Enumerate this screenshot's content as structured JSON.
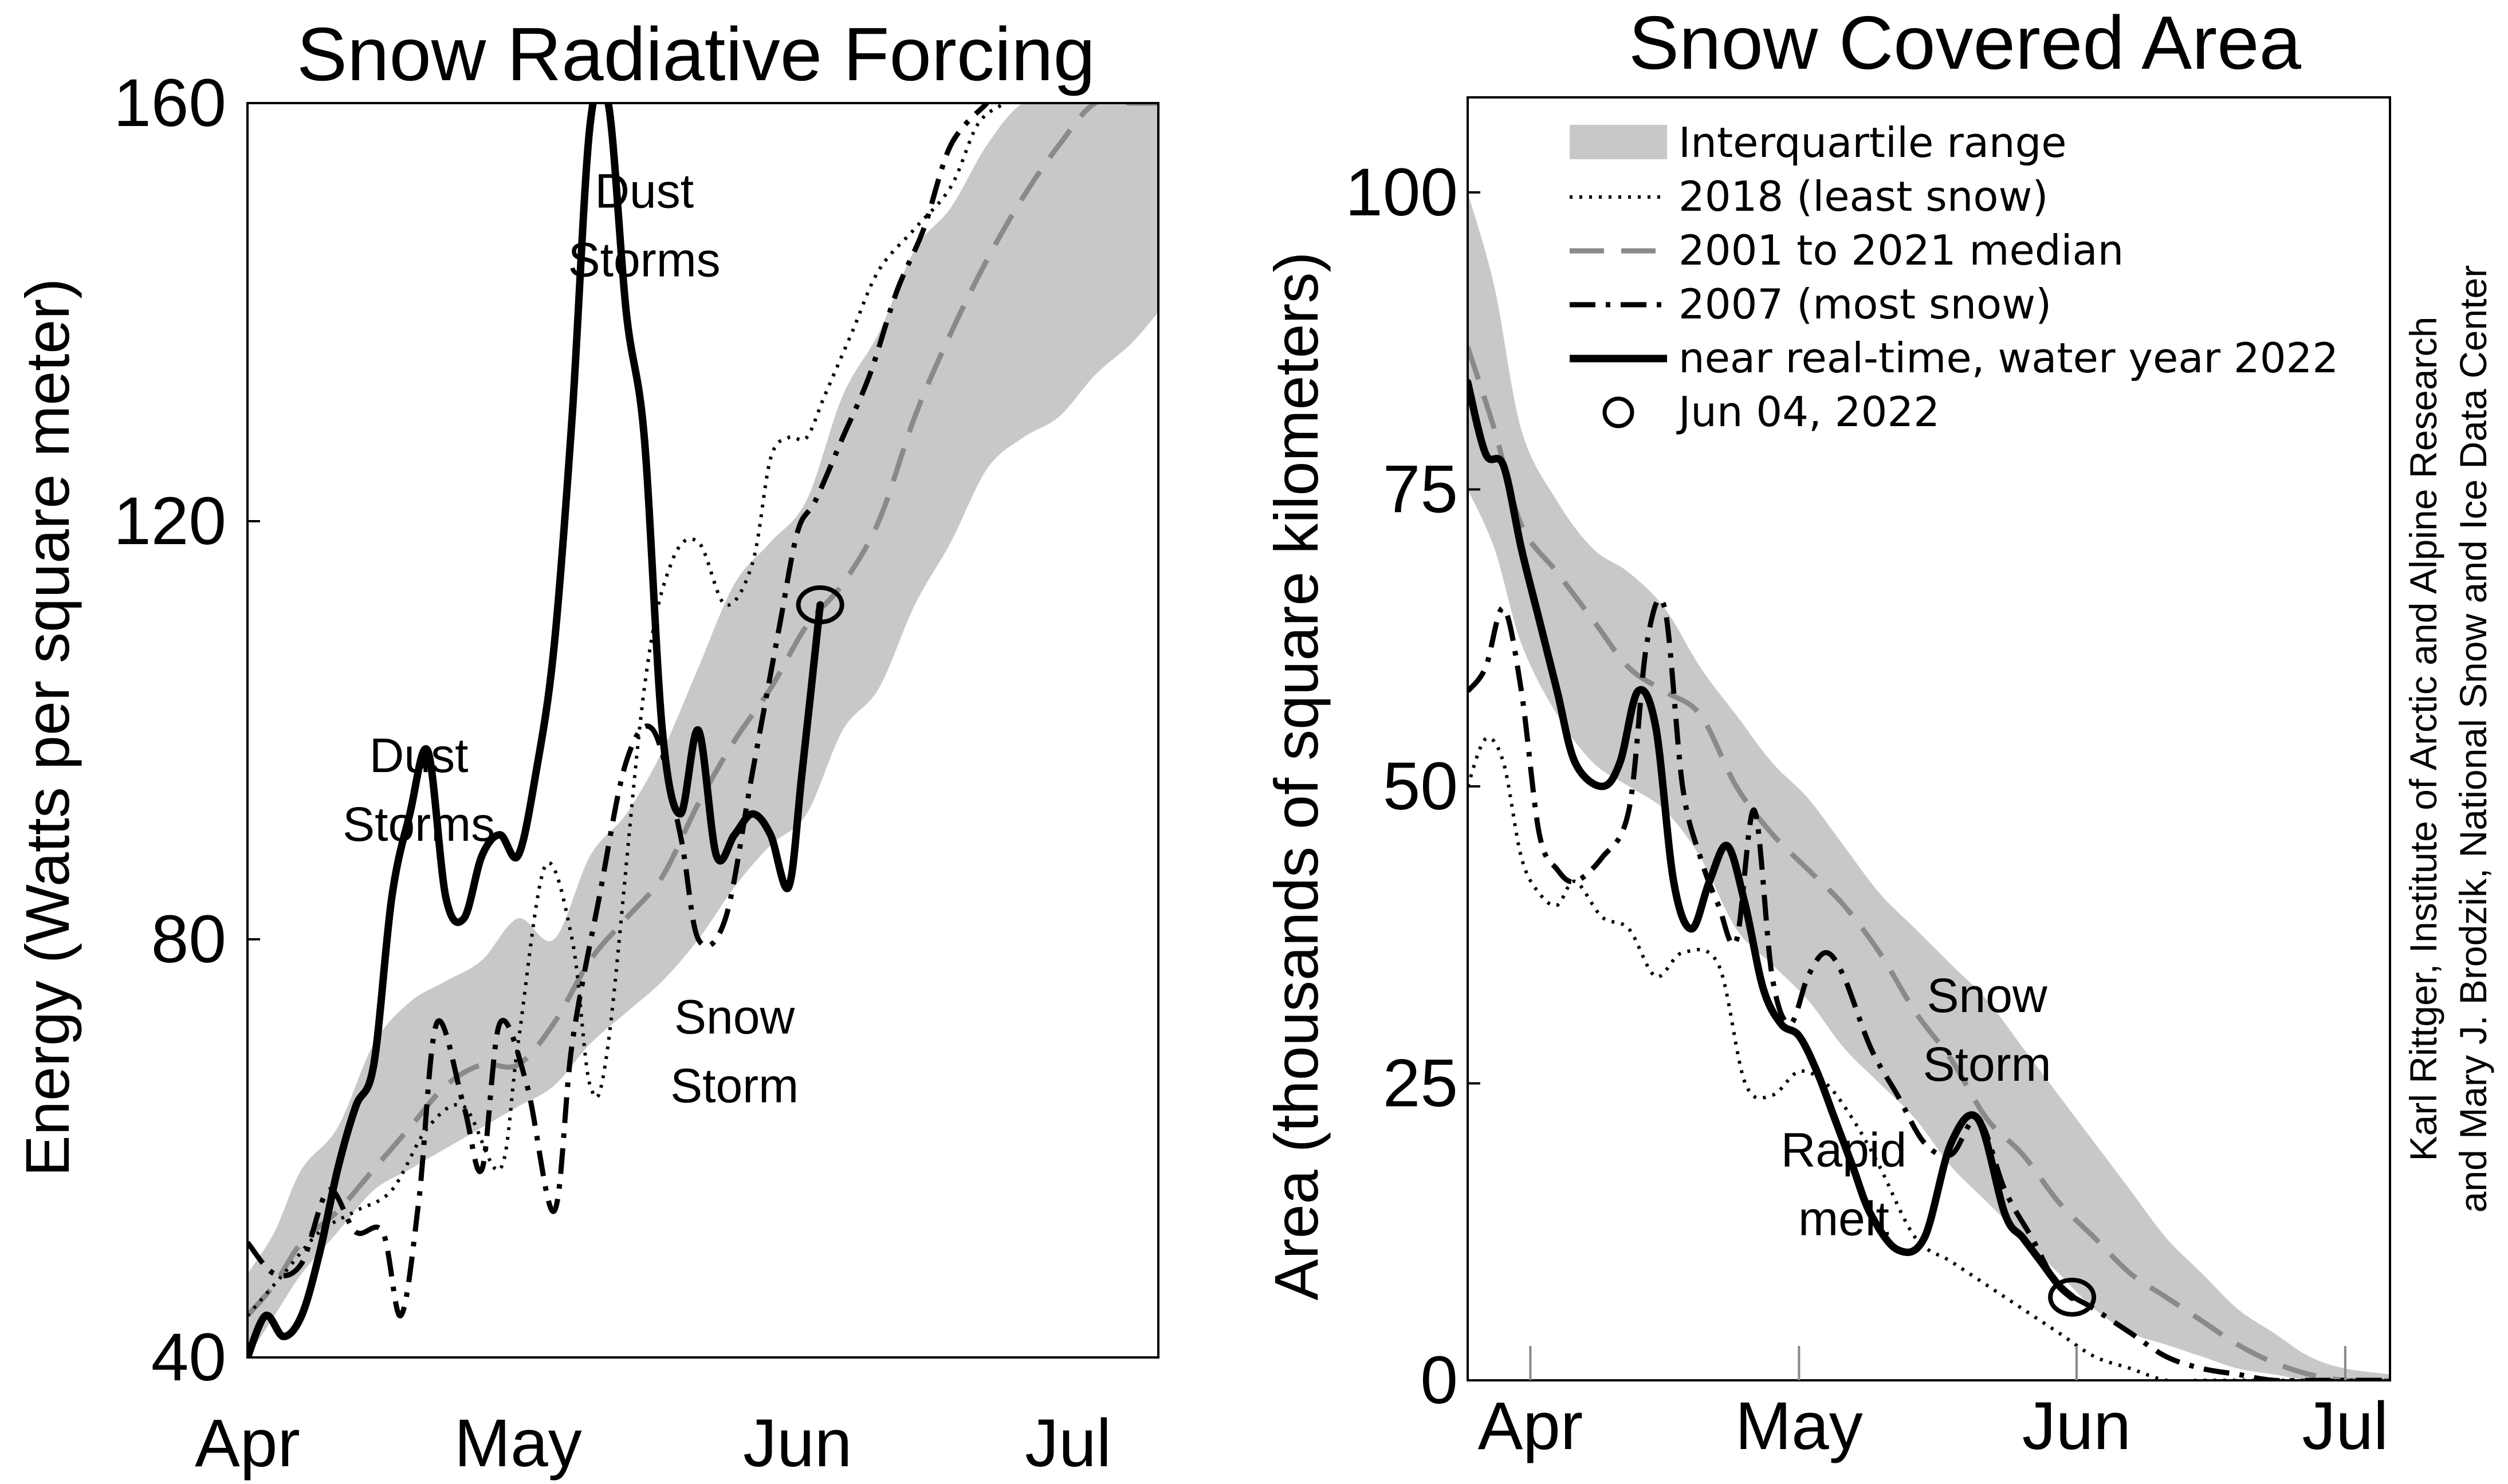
{
  "chart_data": [
    {
      "type": "line",
      "title": "Snow Radiative Forcing",
      "ylabel": "Energy (Watts per square meter)",
      "xlabel": "",
      "x_ticks": [
        "Apr",
        "May",
        "Jun",
        "Jul"
      ],
      "x_tick_days": [
        0,
        30,
        61,
        91
      ],
      "ylim": [
        40,
        160
      ],
      "y_ticks": [
        40,
        80,
        120,
        160
      ],
      "xlim": [
        0,
        101
      ],
      "grid": false,
      "series": [
        {
          "key": "iqr",
          "style": "band",
          "x": [
            0,
            3,
            6,
            10,
            14,
            18,
            22,
            26,
            30,
            34,
            38,
            42,
            46,
            50,
            54,
            58,
            62,
            66,
            70,
            74,
            78,
            82,
            86,
            90,
            94,
            98,
            101
          ],
          "lower": [
            40,
            44,
            48,
            52,
            56,
            58,
            60,
            62,
            64,
            66,
            70,
            73,
            76,
            80,
            85,
            89,
            92,
            100,
            104,
            112,
            118,
            125,
            128,
            130,
            134,
            137,
            140
          ],
          "upper": [
            48,
            52,
            58,
            62,
            70,
            74,
            76,
            78,
            82,
            80,
            88,
            92,
            98,
            106,
            114,
            118,
            122,
            132,
            138,
            146,
            150,
            156,
            160,
            160,
            160,
            160,
            160
          ]
        },
        {
          "key": "median",
          "style": "dashed",
          "x": [
            0,
            3,
            6,
            10,
            14,
            18,
            22,
            26,
            30,
            34,
            38,
            42,
            46,
            50,
            54,
            58,
            62,
            66,
            70,
            74,
            78,
            82,
            86,
            90,
            94,
            98,
            101
          ],
          "y": [
            44,
            47,
            51,
            54,
            58,
            62,
            66,
            68,
            68,
            72,
            78,
            82,
            86,
            93,
            99,
            104,
            110,
            114,
            120,
            130,
            138,
            145,
            151,
            156,
            160,
            160,
            160
          ]
        },
        {
          "key": "y2018",
          "style": "dotted",
          "x": [
            0,
            4,
            8,
            12,
            16,
            20,
            24,
            28,
            30,
            33,
            36,
            38,
            40,
            44,
            47,
            50,
            53,
            56,
            58,
            60,
            62,
            64,
            67,
            70,
            74,
            78,
            81,
            84
          ],
          "y": [
            44,
            48,
            52,
            54,
            56,
            62,
            64,
            58,
            70,
            87,
            80,
            66,
            70,
            104,
            116,
            118,
            112,
            116,
            126,
            128,
            128,
            132,
            138,
            144,
            148,
            152,
            158,
            160
          ]
        },
        {
          "key": "y2007",
          "style": "dashdot",
          "x": [
            0,
            3,
            6,
            9,
            12,
            15,
            17,
            19,
            21,
            24,
            26,
            28,
            31,
            34,
            36,
            39,
            42,
            45,
            48,
            50,
            53,
            56,
            59,
            61,
            63,
            66,
            69,
            72,
            75,
            78,
            82
          ],
          "y": [
            51,
            48,
            49,
            56,
            52,
            52,
            44,
            55,
            72,
            64,
            58,
            72,
            66,
            54,
            70,
            84,
            97,
            100,
            90,
            80,
            82,
            96,
            110,
            119,
            122,
            128,
            134,
            142,
            148,
            156,
            160
          ]
        },
        {
          "key": "y2022",
          "style": "solid",
          "x": [
            0,
            2,
            4,
            6,
            8,
            10,
            12,
            14,
            16,
            18,
            20,
            22,
            24,
            26,
            28,
            30,
            32,
            34,
            36,
            38,
            40,
            42,
            44,
            46,
            48,
            50,
            52,
            54,
            56,
            58,
            60,
            61.5,
            63.5
          ],
          "y": [
            40,
            44,
            42,
            44,
            50,
            58,
            64,
            68,
            84,
            92,
            98,
            84,
            82,
            88,
            90,
            88,
            96,
            108,
            130,
            158,
            160,
            140,
            128,
            100,
            92,
            100,
            88,
            90,
            92,
            90,
            85,
            96,
            112
          ]
        },
        {
          "key": "today",
          "style": "marker",
          "x": [
            63.5
          ],
          "y": [
            112
          ]
        }
      ],
      "annotations": [
        {
          "lines": [
            "Dust",
            "Storms"
          ],
          "x": 44,
          "y": 150
        },
        {
          "lines": [
            "Dust",
            "Storms"
          ],
          "x": 19,
          "y": 96
        },
        {
          "lines": [
            "Snow",
            "Storm"
          ],
          "x": 54,
          "y": 71
        }
      ]
    },
    {
      "type": "line",
      "title": "Snow Covered Area",
      "ylabel": "Area (thousands of square kilometers)",
      "xlabel": "",
      "x_ticks": [
        "Apr",
        "May",
        "Jun",
        "Jul"
      ],
      "x_tick_days": [
        7,
        37,
        68,
        98
      ],
      "ylim": [
        0,
        108
      ],
      "y_ticks": [
        0,
        25,
        50,
        75,
        100
      ],
      "xlim": [
        0,
        103
      ],
      "grid": false,
      "series": [
        {
          "key": "iqr",
          "style": "band",
          "x": [
            0,
            3,
            6,
            10,
            14,
            18,
            22,
            26,
            30,
            34,
            38,
            42,
            46,
            50,
            54,
            58,
            62,
            66,
            70,
            74,
            78,
            82,
            86,
            90,
            94,
            98,
            103
          ],
          "lower": [
            75,
            70,
            62,
            56,
            52,
            50,
            48,
            44,
            38,
            35,
            32,
            28,
            25,
            22,
            18,
            15,
            12,
            9,
            6,
            4,
            3,
            2,
            1,
            0.5,
            0,
            0,
            0
          ],
          "upper": [
            100,
            92,
            80,
            74,
            70,
            68,
            65,
            60,
            56,
            52,
            49,
            45,
            41,
            38,
            35,
            32,
            28,
            24,
            20,
            16,
            12,
            9,
            6,
            4,
            2,
            1,
            0.5
          ]
        },
        {
          "key": "median",
          "style": "dashed",
          "x": [
            0,
            3,
            6,
            10,
            14,
            18,
            22,
            26,
            30,
            34,
            38,
            42,
            46,
            50,
            54,
            58,
            62,
            66,
            70,
            74,
            78,
            82,
            86,
            90,
            94,
            98,
            103
          ],
          "y": [
            87,
            80,
            72,
            68,
            64,
            60,
            58,
            56,
            50,
            46,
            43,
            40,
            36,
            31,
            27,
            22,
            19,
            15,
            12,
            9,
            7,
            5,
            3,
            1.5,
            0.5,
            0,
            0
          ]
        },
        {
          "key": "y2018",
          "style": "dotted",
          "x": [
            0,
            2,
            4,
            6,
            8,
            10,
            12,
            15,
            18,
            21,
            24,
            28,
            31,
            34,
            37,
            40,
            43,
            46,
            50,
            54,
            58,
            62,
            66,
            70,
            74,
            78,
            82,
            86,
            90,
            95,
            103
          ],
          "y": [
            50,
            54,
            52,
            44,
            41,
            40,
            42,
            39,
            38,
            34,
            36,
            35,
            25,
            24,
            26,
            25,
            22,
            18,
            12,
            10,
            8,
            6,
            4,
            2,
            1,
            0,
            0,
            0,
            0,
            0,
            0
          ]
        },
        {
          "key": "y2007",
          "style": "dashdot",
          "x": [
            0,
            2,
            4,
            6,
            8,
            10,
            12,
            15,
            18,
            20,
            22,
            24,
            26,
            28,
            30,
            32,
            34,
            36,
            38,
            40,
            42,
            45,
            48,
            51,
            54,
            57,
            60,
            63,
            66,
            70,
            74,
            78,
            82,
            86,
            90,
            95,
            103
          ],
          "y": [
            58,
            60,
            65,
            58,
            46,
            43,
            42,
            44,
            48,
            62,
            65,
            50,
            44,
            40,
            37,
            48,
            34,
            30,
            34,
            36,
            34,
            28,
            24,
            20,
            19,
            22,
            16,
            12,
            8,
            6,
            4,
            2,
            1,
            0.5,
            0,
            0,
            0
          ]
        },
        {
          "key": "y2022",
          "style": "solid",
          "x": [
            0,
            2,
            4,
            6,
            8,
            10,
            12,
            15,
            17,
            19,
            21,
            23,
            25,
            27,
            29,
            31,
            33,
            35,
            37,
            39,
            41,
            43,
            45,
            48,
            51,
            54,
            57,
            60,
            62,
            64,
            66,
            67.5
          ],
          "y": [
            84,
            78,
            77,
            70,
            64,
            58,
            52,
            50,
            52,
            58,
            55,
            42,
            38,
            42,
            45,
            40,
            33,
            30,
            29,
            26,
            22,
            18,
            14,
            11,
            12,
            20,
            22,
            14,
            12,
            10,
            8,
            7
          ]
        },
        {
          "key": "today",
          "style": "marker",
          "x": [
            67.5
          ],
          "y": [
            7
          ]
        }
      ],
      "legend": {
        "placement": "top-right",
        "entries": [
          {
            "key": "iqr",
            "label": "Interquartile range"
          },
          {
            "key": "y2018",
            "label": "2018 (least snow)"
          },
          {
            "key": "median",
            "label": "2001 to 2021 median"
          },
          {
            "key": "y2007",
            "label": "2007 (most snow)"
          },
          {
            "key": "y2022",
            "label": "near real-time, water year 2022"
          },
          {
            "key": "today",
            "label": "Jun 04, 2022"
          }
        ]
      },
      "annotations": [
        {
          "lines": [
            "Snow",
            "Storm"
          ],
          "x": 58,
          "y": 31
        },
        {
          "lines": [
            "Rapid",
            "melt"
          ],
          "x": 42,
          "y": 18
        }
      ]
    }
  ],
  "credit": {
    "line1": "Karl Rittger, Institute of Arctic and Alpine Research",
    "line2": "and Mary J. Brodzik, National Snow and Ice Data Center"
  },
  "colors": {
    "band": "#c8c8c8",
    "median": "#8a8a8a",
    "line": "#000000"
  }
}
